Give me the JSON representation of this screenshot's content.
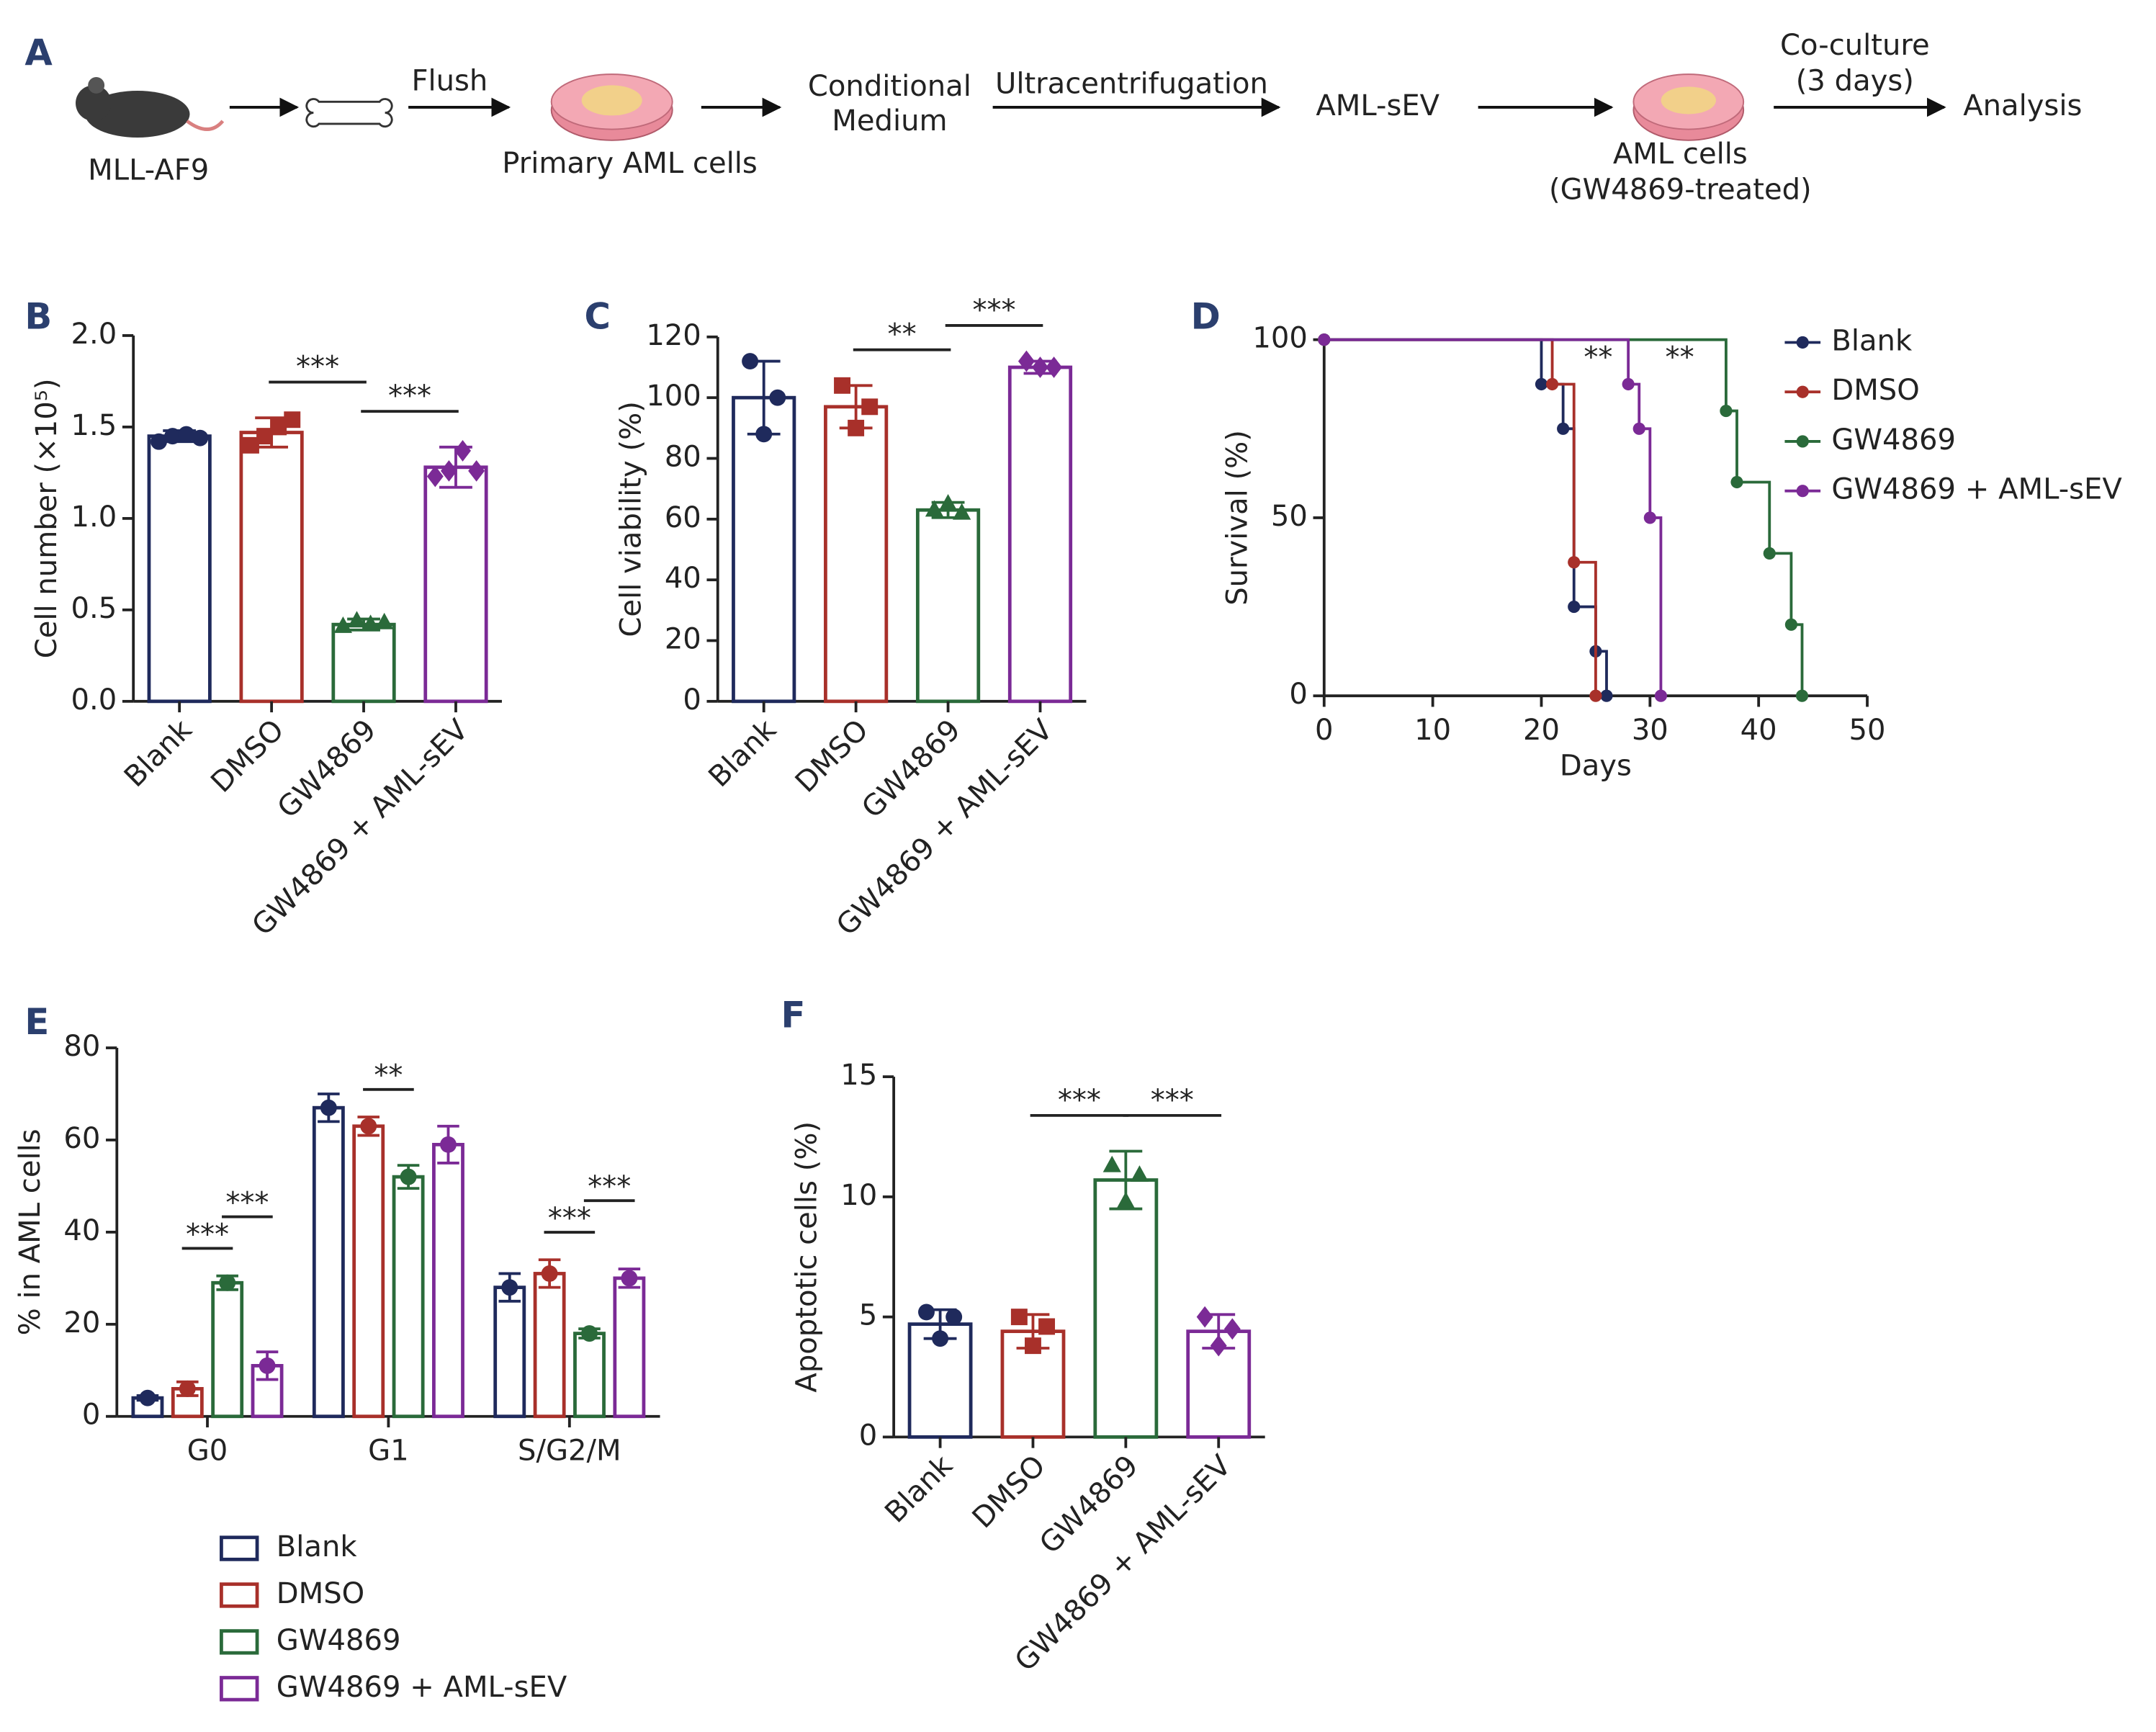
{
  "workflow": {
    "panel": "A",
    "labels": [
      [
        "MLL-AF9"
      ],
      [
        "Flush"
      ],
      [
        "Primary AML cells"
      ],
      [
        "Conditional",
        "Medium"
      ],
      [
        "Ultracentrifugation"
      ],
      [
        "AML-sEV"
      ],
      [
        "AML cells",
        "(GW4869-treated)"
      ],
      [
        "Co-culture",
        "(3 days)"
      ],
      [
        "Analysis"
      ]
    ]
  },
  "chart_data": [
    {
      "type": "bar",
      "panel": "B",
      "y_label": "Cell number (×10⁵)",
      "categories": [
        "Blank",
        "DMSO",
        "GW4869",
        "GW4869 + AML-sEV"
      ],
      "colors": [
        "#1f2a5c",
        "#a8302a",
        "#2a6a3a",
        "#7b2a96"
      ],
      "markers": [
        "circle",
        "square",
        "triangle",
        "diamond"
      ],
      "values": [
        1.45,
        1.47,
        0.42,
        1.28
      ],
      "errors": [
        0.03,
        0.08,
        0.03,
        0.11
      ],
      "points": [
        [
          1.42,
          1.45,
          1.46,
          1.44
        ],
        [
          1.4,
          1.45,
          1.5,
          1.54
        ],
        [
          0.41,
          0.44,
          0.42,
          0.43
        ],
        [
          1.23,
          1.26,
          1.37,
          1.26
        ]
      ],
      "ylim": [
        0,
        2
      ],
      "yticks": [
        {
          "value": 0,
          "label": "0.0"
        },
        0.5,
        {
          "value": 1,
          "label": "1.0"
        },
        1.5,
        {
          "value": 2,
          "label": "2.0"
        }
      ],
      "annotations": [
        {
          "text": "***",
          "from": 1,
          "to": 2
        },
        {
          "text": "***",
          "from": 2,
          "to": 3
        }
      ]
    },
    {
      "type": "bar",
      "panel": "C",
      "y_label": "Cell viability (%)",
      "categories": [
        "Blank",
        "DMSO",
        "GW4869",
        "GW4869 + AML-sEV"
      ],
      "colors": [
        "#1f2a5c",
        "#a8302a",
        "#2a6a3a",
        "#7b2a96"
      ],
      "markers": [
        "circle",
        "square",
        "triangle",
        "diamond"
      ],
      "values": [
        100,
        97,
        63,
        110
      ],
      "errors": [
        12,
        7,
        2.5,
        2
      ],
      "points": [
        [
          112,
          88,
          100
        ],
        [
          104,
          90,
          97
        ],
        [
          63,
          65,
          62
        ],
        [
          112,
          110,
          110
        ]
      ],
      "ylim": [
        0,
        120
      ],
      "yticks": [
        0,
        20,
        40,
        60,
        80,
        100,
        120
      ],
      "annotations": [
        {
          "text": "**",
          "from": 1,
          "to": 2
        },
        {
          "text": "***",
          "from": 2,
          "to": 3
        }
      ]
    },
    {
      "type": "line",
      "panel": "D",
      "step": true,
      "x_label": "Days",
      "y_label": "Survival (%)",
      "series": [
        {
          "name": "Blank",
          "color": "#1f2a5c",
          "x": [
            0,
            20,
            22,
            23,
            25,
            26
          ],
          "values": [
            100,
            87.5,
            75,
            25,
            12.5,
            0
          ]
        },
        {
          "name": "DMSO",
          "color": "#a8302a",
          "x": [
            0,
            21,
            23,
            25
          ],
          "values": [
            100,
            87.5,
            37.5,
            0
          ]
        },
        {
          "name": "GW4869",
          "color": "#2a6a3a",
          "x": [
            0,
            37,
            38,
            41,
            43,
            44
          ],
          "values": [
            100,
            80,
            60,
            40,
            20,
            0
          ]
        },
        {
          "name": "GW4869 + AML-sEV",
          "color": "#7b2a96",
          "x": [
            0,
            28,
            29,
            30,
            31
          ],
          "values": [
            100,
            87.5,
            75,
            50,
            0
          ]
        }
      ],
      "xlim": [
        0,
        50
      ],
      "xticks": [
        0,
        10,
        20,
        30,
        40,
        50
      ],
      "ylim": [
        0,
        100
      ],
      "yticks": [
        0,
        50,
        100
      ],
      "legend": "upper right",
      "annotations": [
        {
          "text": "**",
          "between": [
            1,
            3
          ]
        },
        {
          "text": "**",
          "between": [
            3,
            2
          ]
        }
      ]
    },
    {
      "type": "bar",
      "panel": "E",
      "y_label": "% in AML cells",
      "categories": [
        "G0",
        "G1",
        "S/G2/M"
      ],
      "series": [
        {
          "name": "Blank",
          "color": "#1f2a5c",
          "values": [
            4,
            67,
            28
          ],
          "errors": [
            0.5,
            3,
            3
          ]
        },
        {
          "name": "DMSO",
          "color": "#a8302a",
          "values": [
            6,
            63,
            31
          ],
          "errors": [
            1.5,
            2,
            3
          ]
        },
        {
          "name": "GW4869",
          "color": "#2a6a3a",
          "values": [
            29,
            52,
            18
          ],
          "errors": [
            1.5,
            2.5,
            1
          ]
        },
        {
          "name": "GW4869 + AML-sEV",
          "color": "#7b2a96",
          "values": [
            11,
            59,
            30
          ],
          "errors": [
            3,
            4,
            2
          ]
        }
      ],
      "ylim": [
        0,
        80
      ],
      "yticks": [
        0,
        20,
        40,
        60,
        80
      ],
      "legend": "below",
      "annotations": [
        {
          "text": "***",
          "category": 0,
          "from": 1,
          "to": 2
        },
        {
          "text": "***",
          "category": 0,
          "from": 2,
          "to": 3
        },
        {
          "text": "**",
          "category": 1,
          "from": 1,
          "to": 2
        },
        {
          "text": "***",
          "category": 2,
          "from": 1,
          "to": 2
        },
        {
          "text": "***",
          "category": 2,
          "from": 2,
          "to": 3
        }
      ]
    },
    {
      "type": "bar",
      "panel": "F",
      "y_label": "Apoptotic cells (%)",
      "categories": [
        "Blank",
        "DMSO",
        "GW4869",
        "GW4869 + AML-sEV"
      ],
      "colors": [
        "#1f2a5c",
        "#a8302a",
        "#2a6a3a",
        "#7b2a96"
      ],
      "markers": [
        "circle",
        "square",
        "triangle",
        "diamond"
      ],
      "values": [
        4.7,
        4.4,
        10.7,
        4.4
      ],
      "errors": [
        0.6,
        0.7,
        1.2,
        0.7
      ],
      "points": [
        [
          5.2,
          4.1,
          5.0
        ],
        [
          5.0,
          3.8,
          4.6
        ],
        [
          11.3,
          9.8,
          10.9
        ],
        [
          5.0,
          3.8,
          4.5
        ]
      ],
      "ylim": [
        0,
        15
      ],
      "yticks": [
        0,
        5,
        10,
        15
      ],
      "annotations": [
        {
          "text": "***",
          "from": 1,
          "to": 2
        },
        {
          "text": "***",
          "from": 2,
          "to": 3
        }
      ]
    }
  ]
}
